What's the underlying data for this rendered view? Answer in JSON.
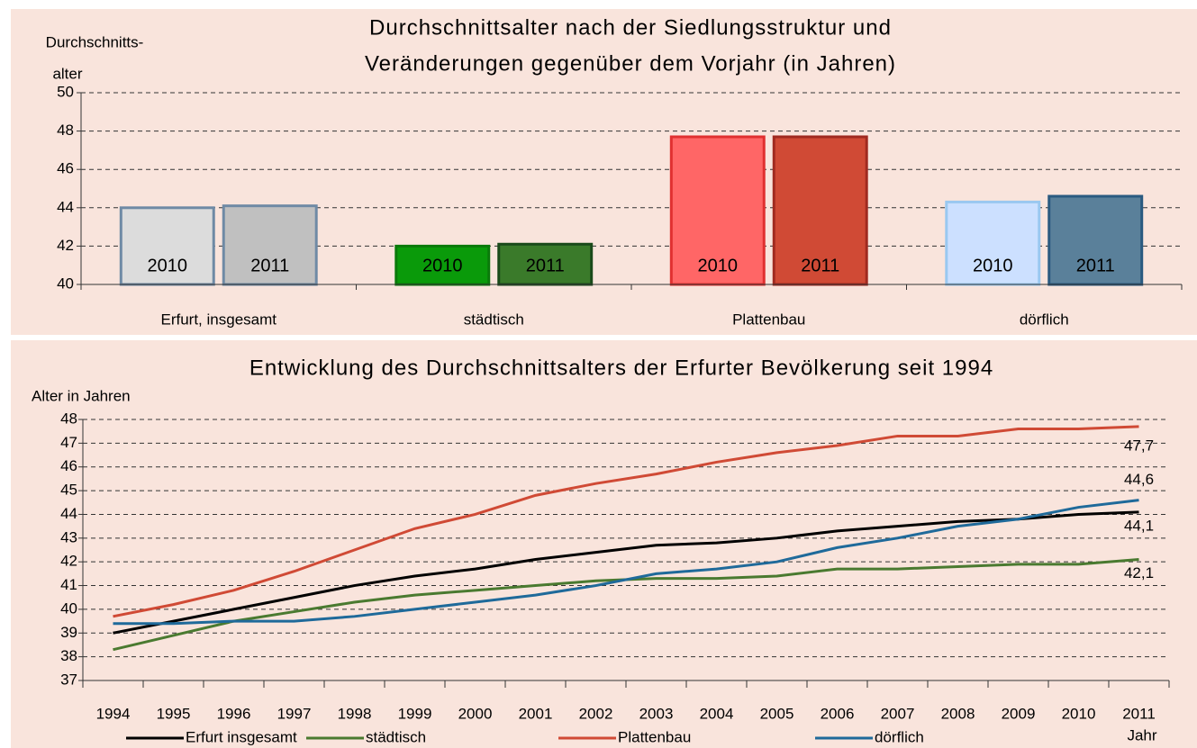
{
  "chart_data": [
    {
      "type": "bar",
      "title": "Durchschnittsalter nach der Siedlungsstruktur und",
      "subtitle": "Veränderungen gegenüber dem Vorjahr (in Jahren)",
      "y_label": [
        "Durchschnitts-",
        "alter"
      ],
      "categories": [
        "Erfurt, insgesamt",
        "städtisch",
        "Plattenbau",
        "dörflich"
      ],
      "series": [
        {
          "name": "2010",
          "colors": [
            "#dcdcdc",
            "#0a9a0a",
            "#ff6666",
            "#cce0ff"
          ],
          "stroke_colors": [
            "#6f8aa5",
            "#0a7a0a",
            "#e03030",
            "#9ac8f0"
          ],
          "values": [
            44.0,
            42.0,
            47.7,
            44.3
          ]
        },
        {
          "name": "2011",
          "colors": [
            "#c0c0c0",
            "#3a7a2a",
            "#d04a35",
            "#5a809a"
          ],
          "stroke_colors": [
            "#6f8aa5",
            "#1a4a1a",
            "#a02a20",
            "#2a5a80"
          ],
          "values": [
            44.1,
            42.1,
            47.7,
            44.6
          ]
        }
      ],
      "ylim": [
        40,
        50
      ],
      "yticks": [
        40,
        42,
        44,
        46,
        48,
        50
      ],
      "grid": true
    },
    {
      "type": "line",
      "title": "Entwicklung des Durchschnittsalters der Erfurter Bevölkerung seit 1994",
      "y_label": "Alter in Jahren",
      "x_label": "Jahr",
      "categories": [
        "1994",
        "1995",
        "1996",
        "1997",
        "1998",
        "1999",
        "2000",
        "2001",
        "2002",
        "2003",
        "2004",
        "2005",
        "2006",
        "2007",
        "2008",
        "2009",
        "2010",
        "2011"
      ],
      "series": [
        {
          "name": "Erfurt insgesamt",
          "color": "#000000",
          "values": [
            39.0,
            39.5,
            40.0,
            40.5,
            41.0,
            41.4,
            41.7,
            42.1,
            42.4,
            42.7,
            42.8,
            43.0,
            43.3,
            43.5,
            43.7,
            43.8,
            44.0,
            44.1
          ],
          "value_labels": [
            null,
            null,
            null,
            null,
            null,
            null,
            null,
            null,
            null,
            null,
            null,
            null,
            null,
            null,
            null,
            null,
            null,
            "44,1"
          ]
        },
        {
          "name": "städtisch",
          "color": "#4a7a30",
          "values": [
            38.3,
            38.9,
            39.5,
            39.9,
            40.3,
            40.6,
            40.8,
            41.0,
            41.2,
            41.3,
            41.3,
            41.4,
            41.7,
            41.7,
            41.8,
            41.9,
            41.9,
            42.1
          ],
          "value_labels": [
            null,
            null,
            null,
            null,
            null,
            null,
            null,
            null,
            null,
            null,
            null,
            null,
            null,
            null,
            null,
            null,
            null,
            "42,1"
          ]
        },
        {
          "name": "Plattenbau",
          "color": "#d04a35",
          "values": [
            39.7,
            40.2,
            40.8,
            41.6,
            42.5,
            43.4,
            44.0,
            44.8,
            45.3,
            45.7,
            46.2,
            46.6,
            46.9,
            47.3,
            47.3,
            47.6,
            47.6,
            47.7
          ],
          "value_labels": [
            null,
            null,
            null,
            null,
            null,
            null,
            null,
            null,
            null,
            null,
            null,
            null,
            null,
            null,
            null,
            null,
            null,
            "47,7"
          ]
        },
        {
          "name": "dörflich",
          "color": "#1f6a9a",
          "values": [
            39.4,
            39.4,
            39.5,
            39.5,
            39.7,
            40.0,
            40.3,
            40.6,
            41.0,
            41.5,
            41.7,
            42.0,
            42.6,
            43.0,
            43.5,
            43.8,
            44.3,
            44.6
          ],
          "value_labels": [
            null,
            null,
            null,
            null,
            null,
            null,
            null,
            null,
            null,
            null,
            null,
            null,
            null,
            null,
            null,
            null,
            null,
            "44,6"
          ]
        }
      ],
      "ylim": [
        37,
        48
      ],
      "yticks": [
        37,
        38,
        39,
        40,
        41,
        42,
        43,
        44,
        45,
        46,
        47,
        48
      ],
      "grid": true
    }
  ]
}
